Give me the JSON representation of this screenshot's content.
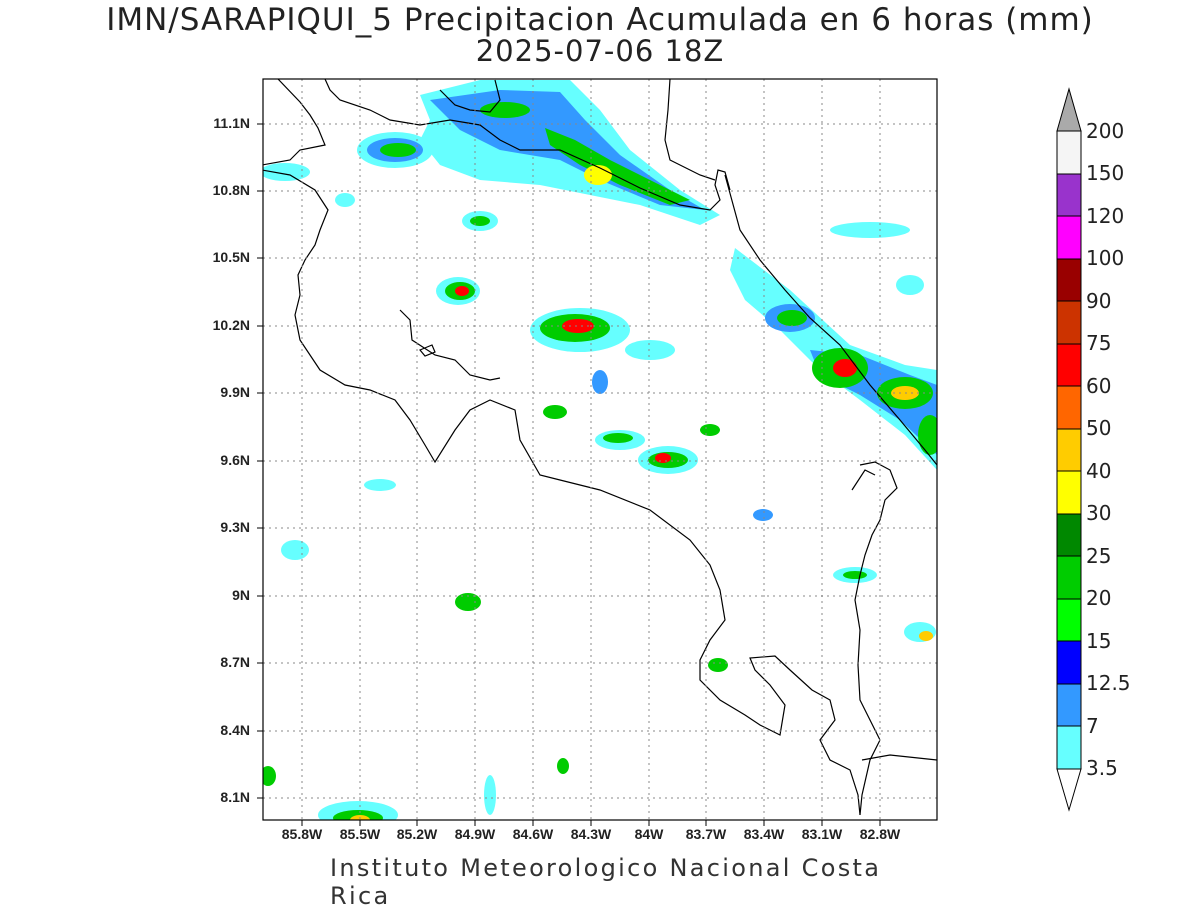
{
  "map": {
    "title": "IMN/SARAPIQUI_5 Precipitacion Acumulada en 6 horas (mm)",
    "subtitle": "2025-07-06 18Z",
    "footer": "Instituto Meteorologico Nacional Costa Rica",
    "lat_labels": [
      "11.1N",
      "10.8N",
      "10.5N",
      "10.2N",
      "9.9N",
      "9.6N",
      "9.3N",
      "9N",
      "8.7N",
      "8.4N",
      "8.1N"
    ],
    "lon_labels": [
      "85.8W",
      "85.5W",
      "85.2W",
      "84.9W",
      "84.6W",
      "84.3W",
      "84W",
      "83.7W",
      "83.4W",
      "83.1W",
      "82.8W"
    ],
    "colorbar": {
      "levels": [
        "3.5",
        "7",
        "12.5",
        "15",
        "20",
        "25",
        "30",
        "40",
        "50",
        "60",
        "75",
        "90",
        "100",
        "120",
        "150",
        "200"
      ],
      "colors": [
        "#66ffff",
        "#3399ff",
        "#0000ff",
        "#00ff00",
        "#00cc00",
        "#008800",
        "#ffff00",
        "#ffcc00",
        "#ff6600",
        "#ff0000",
        "#cc3300",
        "#990000",
        "#ff00ff",
        "#9933cc",
        "#f5f5f5"
      ],
      "overflow_color": "#aaaaaa"
    }
  }
}
